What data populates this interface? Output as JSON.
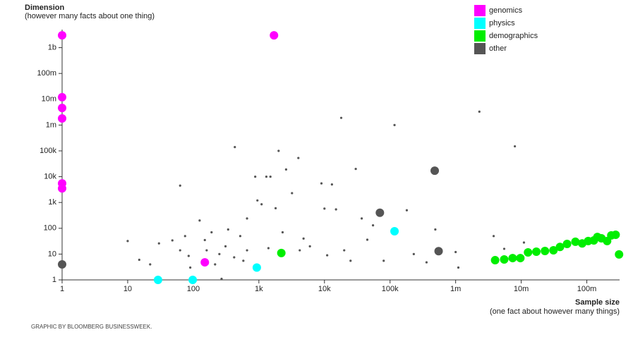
{
  "chart_data": {
    "type": "scatter",
    "y_label": "Dimension",
    "y_sublabel": "(however many facts about one thing)",
    "x_label": "Sample size",
    "x_sublabel": "(one fact about however many things)",
    "credit": "GRAPHIC BY BLOOMBERG BUSINESSWEEK.",
    "log_x": true,
    "log_y": true,
    "grid": false,
    "legend": "top-right",
    "xlim": [
      1,
      316000000
    ],
    "ylim": [
      1,
      5000000000
    ],
    "xticks": [
      1,
      10,
      100,
      {
        "value": 1000,
        "label": "1k"
      },
      {
        "value": 10000,
        "label": "10k"
      },
      {
        "value": 100000,
        "label": "100k"
      },
      {
        "value": 1000000,
        "label": "1m"
      },
      {
        "value": 10000000,
        "label": "10m"
      },
      {
        "value": 100000000,
        "label": "100m"
      }
    ],
    "yticks": [
      1,
      10,
      100,
      {
        "value": 1000,
        "label": "1k"
      },
      {
        "value": 10000,
        "label": "10k"
      },
      {
        "value": 100000,
        "label": "100k"
      },
      {
        "value": 1000000,
        "label": "1m"
      },
      {
        "value": 10000000,
        "label": "10m"
      },
      {
        "value": 100000000,
        "label": "100m"
      },
      {
        "value": 1000000000,
        "label": "1b"
      }
    ],
    "series": [
      {
        "color": "#555555",
        "marker_size": 1.6,
        "x": [
          10,
          15,
          22,
          30,
          48,
          63,
          75,
          63,
          125,
          150,
          190,
          250,
          310,
          430,
          520,
          580,
          660,
          880,
          950,
          1100,
          1300,
          1500,
          1800,
          2000,
          2300,
          2600,
          3200,
          4000,
          4800,
          6000,
          9000,
          10000,
          13000,
          15000,
          18000,
          20000,
          25000,
          30000,
          37000,
          45000,
          55000,
          80000,
          117000,
          180000,
          230000,
          360000,
          490000,
          1000000,
          1100000,
          2300000,
          3800000,
          4300000,
          5500000,
          8000000,
          11000000,
          90,
          215,
          420,
          270,
          4200,
          11000,
          1400,
          660,
          340,
          160,
          85
        ],
        "values": [
          32,
          6,
          4,
          26,
          34,
          14,
          50,
          4500,
          200,
          35,
          70,
          10,
          20,
          140000,
          50,
          5.5,
          14,
          10000,
          1200,
          850,
          10000,
          10000,
          600,
          100000,
          70,
          19000,
          2300,
          53000,
          40,
          20,
          5500,
          580,
          5000,
          540,
          1900000,
          14,
          5.5,
          20000,
          240,
          36,
          130,
          5.5,
          1000000,
          500,
          10,
          4.8,
          90,
          12,
          3,
          3300000,
          50,
          4.8,
          16,
          150000,
          28,
          3,
          4,
          7.5,
          1.1,
          14,
          9,
          17,
          240,
          90,
          14,
          8.5
        ]
      },
      {
        "name": "genomics",
        "color": "#ff00ff",
        "marker_size": 6,
        "x": [
          1,
          1,
          1,
          1,
          1,
          1,
          1700,
          150
        ],
        "values": [
          3000000000,
          12000000,
          4600000,
          1800000,
          5500,
          3500,
          3000000000,
          4.8
        ]
      },
      {
        "name": "physics",
        "color": "#00ffff",
        "marker_size": 6,
        "x": [
          29,
          98,
          930,
          117000
        ],
        "values": [
          1,
          1,
          3,
          77
        ]
      },
      {
        "name": "demographics",
        "color": "#00ee00",
        "marker_size": 6,
        "x": [
          2200,
          4000000,
          5500000,
          7400000,
          9700000,
          12700000,
          17000000,
          23000000,
          31000000,
          39000000,
          50000000,
          67000000,
          85000000,
          105000000,
          128000000,
          145000000,
          167000000,
          204000000,
          236000000,
          275000000,
          310000000
        ],
        "values": [
          11,
          5.8,
          6.2,
          7,
          7,
          11.6,
          12.4,
          13.2,
          14,
          19,
          24.8,
          30,
          26,
          32,
          34,
          46,
          41,
          32,
          53,
          56,
          9.7
        ]
      },
      {
        "name": "other",
        "color": "#555555",
        "marker_size": 6,
        "x": [
          1,
          70000,
          480000,
          550000
        ],
        "values": [
          4,
          400,
          17000,
          13
        ]
      }
    ]
  }
}
